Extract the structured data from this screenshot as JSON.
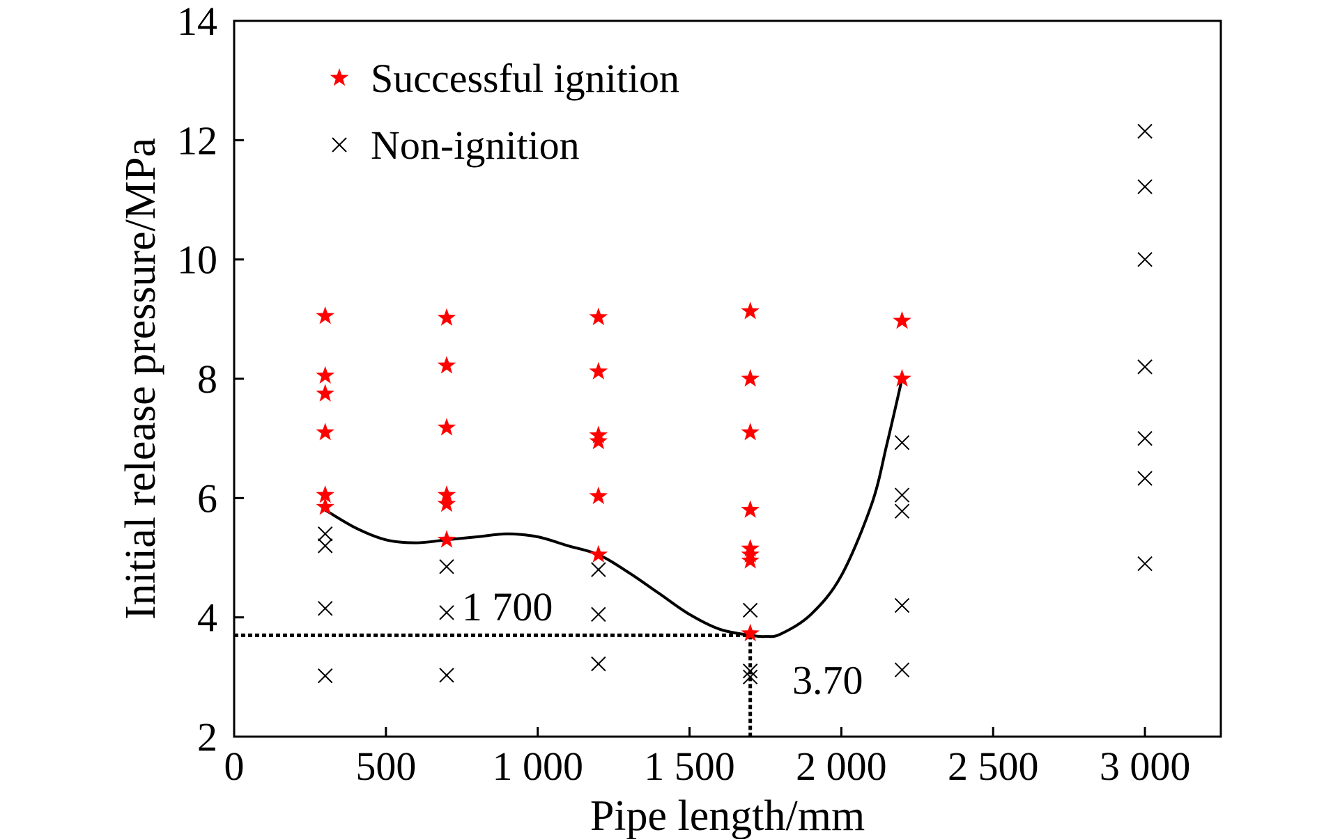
{
  "chart_data": {
    "type": "scatter",
    "title": "",
    "xlabel": "Pipe length/mm",
    "ylabel": "Initial release pressure/MPa",
    "xlim": [
      0,
      3250
    ],
    "ylim": [
      2,
      14
    ],
    "x_ticks": [
      0,
      500,
      1000,
      1500,
      2000,
      2500,
      3000
    ],
    "x_tick_labels": [
      "0",
      "500",
      "1 000",
      "1 500",
      "2 000",
      "2 500",
      "3 000"
    ],
    "y_ticks": [
      2,
      4,
      6,
      8,
      10,
      12,
      14
    ],
    "y_tick_labels": [
      "2",
      "4",
      "6",
      "8",
      "10",
      "12",
      "14"
    ],
    "grid": false,
    "legend_position": "top-left",
    "series": [
      {
        "name": "Successful ignition",
        "marker": "star",
        "color": "#ff0000",
        "points": [
          [
            300,
            9.05
          ],
          [
            300,
            8.05
          ],
          [
            300,
            7.75
          ],
          [
            300,
            7.1
          ],
          [
            300,
            6.05
          ],
          [
            300,
            5.85
          ],
          [
            700,
            9.02
          ],
          [
            700,
            8.22
          ],
          [
            700,
            7.18
          ],
          [
            700,
            6.05
          ],
          [
            700,
            5.9
          ],
          [
            700,
            5.3
          ],
          [
            1200,
            9.03
          ],
          [
            1200,
            8.12
          ],
          [
            1200,
            7.05
          ],
          [
            1200,
            6.95
          ],
          [
            1200,
            6.03
          ],
          [
            1200,
            5.05
          ],
          [
            1700,
            9.13
          ],
          [
            1700,
            8.0
          ],
          [
            1700,
            7.1
          ],
          [
            1700,
            5.8
          ],
          [
            1700,
            5.15
          ],
          [
            1700,
            5.05
          ],
          [
            1700,
            4.95
          ],
          [
            1700,
            3.73
          ],
          [
            2200,
            8.97
          ],
          [
            2200,
            8.0
          ]
        ]
      },
      {
        "name": "Non-ignition",
        "marker": "x",
        "color": "#000000",
        "points": [
          [
            300,
            5.4
          ],
          [
            300,
            5.2
          ],
          [
            300,
            4.15
          ],
          [
            300,
            3.02
          ],
          [
            700,
            4.85
          ],
          [
            700,
            4.08
          ],
          [
            700,
            3.03
          ],
          [
            1200,
            4.8
          ],
          [
            1200,
            4.05
          ],
          [
            1200,
            3.22
          ],
          [
            1700,
            4.12
          ],
          [
            1700,
            3.1
          ],
          [
            1700,
            3.0
          ],
          [
            2200,
            6.93
          ],
          [
            2200,
            6.05
          ],
          [
            2200,
            5.78
          ],
          [
            2200,
            4.2
          ],
          [
            2200,
            3.12
          ],
          [
            3000,
            12.15
          ],
          [
            3000,
            11.22
          ],
          [
            3000,
            10.0
          ],
          [
            3000,
            8.2
          ],
          [
            3000,
            7.0
          ],
          [
            3000,
            6.33
          ],
          [
            3000,
            4.9
          ]
        ]
      }
    ],
    "fit_curve": [
      [
        300,
        5.8
      ],
      [
        400,
        5.5
      ],
      [
        500,
        5.3
      ],
      [
        600,
        5.25
      ],
      [
        700,
        5.3
      ],
      [
        800,
        5.35
      ],
      [
        900,
        5.4
      ],
      [
        1000,
        5.35
      ],
      [
        1100,
        5.2
      ],
      [
        1200,
        5.05
      ],
      [
        1300,
        4.75
      ],
      [
        1400,
        4.4
      ],
      [
        1500,
        4.05
      ],
      [
        1600,
        3.8
      ],
      [
        1700,
        3.7
      ],
      [
        1750,
        3.68
      ],
      [
        1800,
        3.72
      ],
      [
        1900,
        4.05
      ],
      [
        2000,
        4.7
      ],
      [
        2100,
        5.9
      ],
      [
        2150,
        6.9
      ],
      [
        2200,
        8.0
      ]
    ],
    "reference_point": [
      1700,
      3.7
    ],
    "annotations": [
      {
        "text": "1 700",
        "x": 900,
        "y": 3.95
      },
      {
        "text": "3.70",
        "x": 1955,
        "y": 2.72
      }
    ]
  }
}
